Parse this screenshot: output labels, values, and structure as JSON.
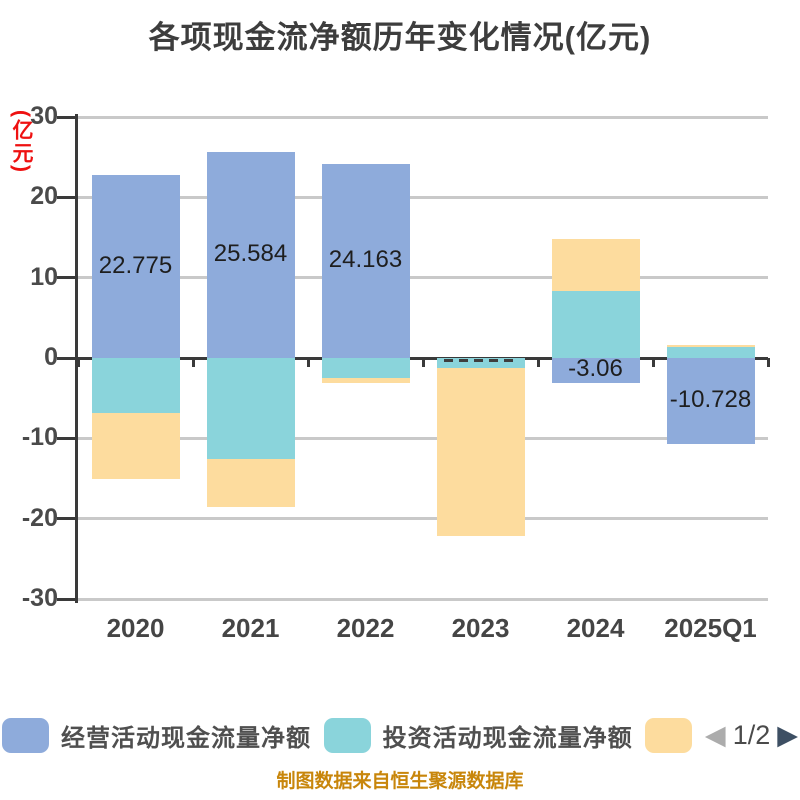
{
  "title": "各项现金流净额历年变化情况(亿元)",
  "y_axis": {
    "label": "(亿元)",
    "label_color": "#ee1111",
    "max": 30,
    "min": -30,
    "ticks": [
      30,
      20,
      10,
      0,
      -10,
      -20,
      -30
    ]
  },
  "chart_data": {
    "type": "bar",
    "stacked": true,
    "grid": true,
    "legend_position": "bottom",
    "title": "各项现金流净额历年变化情况(亿元)",
    "ylabel": "(亿元)",
    "ylim": [
      -30,
      30
    ],
    "categories": [
      "2020",
      "2021",
      "2022",
      "2023",
      "2024",
      "2025Q1"
    ],
    "series": [
      {
        "name": "经营活动现金流量净额",
        "color": "#8EABDB",
        "values": [
          22.775,
          25.584,
          24.163,
          0,
          -3.06,
          -10.728
        ],
        "labels": [
          "22.775",
          "25.584",
          "24.163",
          "",
          "-3.06",
          "-10.728"
        ]
      },
      {
        "name": "投资活动现金流量净额",
        "color": "#8AD4DB",
        "values": [
          -6.9,
          -12.6,
          -2.5,
          -1.3,
          8.4,
          1.4
        ],
        "labels": [
          "",
          "",
          "",
          "",
          "",
          ""
        ]
      },
      {
        "name": "",
        "color": "#FDDC9E",
        "values": [
          -8.2,
          -6.0,
          -0.6,
          -20.8,
          6.4,
          0.25
        ],
        "labels": [
          "",
          "",
          "",
          "",
          "",
          ""
        ]
      }
    ],
    "clipped_label_category_index": 3
  },
  "legend": {
    "items": [
      {
        "label": "经营活动现金流量净额",
        "color": "#8EABDB"
      },
      {
        "label": "投资活动现金流量净额",
        "color": "#8AD4DB"
      },
      {
        "label": "",
        "color": "#FDDC9E"
      }
    ],
    "pagination": {
      "text": "1/2",
      "prev_color": "#ACACAC",
      "next_color": "#3D4F63"
    }
  },
  "footer": {
    "caption": "制图数据来自恒生聚源数据库",
    "color": "#c8860b"
  }
}
